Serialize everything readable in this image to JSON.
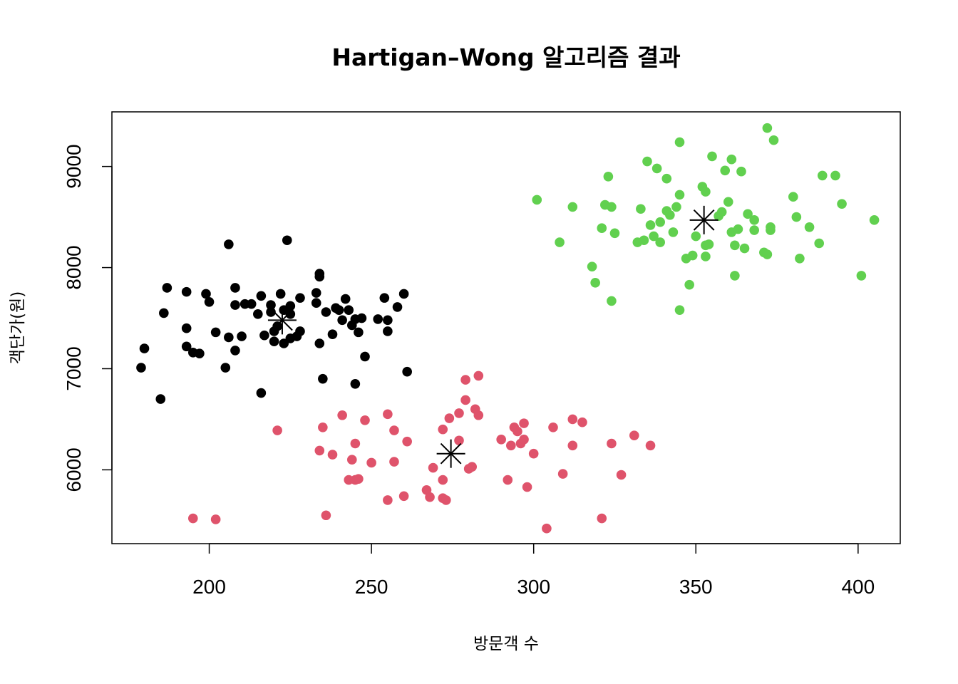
{
  "chart_data": {
    "type": "scatter",
    "title": "Hartigan–Wong 알고리즘 결과",
    "xlabel": "방문객 수",
    "ylabel": "객단가(원)",
    "xlim": [
      170,
      413
    ],
    "ylim": [
      5270,
      9540
    ],
    "xticks": [
      200,
      250,
      300,
      350,
      400
    ],
    "yticks": [
      6000,
      7000,
      8000,
      9000
    ],
    "grid": false,
    "legend": "none",
    "series": [
      {
        "color": "#000000",
        "points": [
          [
            179,
            7010
          ],
          [
            180,
            7200
          ],
          [
            185,
            6700
          ],
          [
            186,
            7550
          ],
          [
            187,
            7800
          ],
          [
            193,
            7400
          ],
          [
            193,
            7220
          ],
          [
            193,
            7760
          ],
          [
            195,
            7160
          ],
          [
            197,
            7150
          ],
          [
            199,
            7740
          ],
          [
            200,
            7660
          ],
          [
            202,
            7360
          ],
          [
            205,
            7010
          ],
          [
            206,
            8230
          ],
          [
            206,
            7310
          ],
          [
            208,
            7180
          ],
          [
            208,
            7800
          ],
          [
            208,
            7630
          ],
          [
            210,
            7320
          ],
          [
            211,
            7640
          ],
          [
            213,
            7640
          ],
          [
            215,
            7540
          ],
          [
            216,
            6760
          ],
          [
            216,
            7720
          ],
          [
            217,
            7330
          ],
          [
            219,
            7560
          ],
          [
            219,
            7630
          ],
          [
            220,
            7270
          ],
          [
            220,
            7370
          ],
          [
            221,
            7420
          ],
          [
            222,
            7740
          ],
          [
            223,
            7250
          ],
          [
            223,
            7580
          ],
          [
            224,
            8270
          ],
          [
            225,
            7620
          ],
          [
            225,
            7540
          ],
          [
            225,
            7300
          ],
          [
            227,
            7320
          ],
          [
            228,
            7700
          ],
          [
            228,
            7370
          ],
          [
            233,
            7650
          ],
          [
            233,
            7750
          ],
          [
            234,
            7940
          ],
          [
            234,
            7250
          ],
          [
            234,
            7910
          ],
          [
            235,
            6900
          ],
          [
            236,
            7560
          ],
          [
            238,
            7340
          ],
          [
            239,
            7600
          ],
          [
            240,
            7580
          ],
          [
            241,
            7480
          ],
          [
            242,
            7690
          ],
          [
            243,
            7580
          ],
          [
            244,
            7430
          ],
          [
            245,
            6850
          ],
          [
            245,
            7490
          ],
          [
            246,
            7360
          ],
          [
            247,
            7500
          ],
          [
            248,
            7120
          ],
          [
            252,
            7490
          ],
          [
            254,
            7700
          ],
          [
            255,
            7480
          ],
          [
            255,
            7370
          ],
          [
            258,
            7610
          ],
          [
            260,
            7740
          ],
          [
            261,
            6970
          ]
        ]
      },
      {
        "color": "#df536b",
        "points": [
          [
            195,
            5520
          ],
          [
            202,
            5510
          ],
          [
            221,
            6390
          ],
          [
            234,
            6190
          ],
          [
            235,
            6420
          ],
          [
            236,
            5550
          ],
          [
            238,
            6150
          ],
          [
            241,
            6540
          ],
          [
            243,
            5900
          ],
          [
            244,
            6100
          ],
          [
            245,
            6260
          ],
          [
            245,
            5900
          ],
          [
            246,
            5910
          ],
          [
            248,
            6490
          ],
          [
            250,
            6070
          ],
          [
            255,
            6550
          ],
          [
            255,
            5700
          ],
          [
            257,
            6080
          ],
          [
            257,
            6390
          ],
          [
            260,
            5740
          ],
          [
            261,
            6280
          ],
          [
            267,
            5800
          ],
          [
            268,
            5730
          ],
          [
            269,
            6020
          ],
          [
            272,
            5900
          ],
          [
            272,
            6400
          ],
          [
            272,
            5720
          ],
          [
            273,
            5700
          ],
          [
            274,
            6510
          ],
          [
            277,
            6560
          ],
          [
            277,
            6290
          ],
          [
            279,
            6690
          ],
          [
            279,
            6890
          ],
          [
            280,
            6010
          ],
          [
            281,
            6030
          ],
          [
            282,
            6600
          ],
          [
            283,
            6930
          ],
          [
            283,
            6540
          ],
          [
            290,
            6300
          ],
          [
            292,
            5900
          ],
          [
            293,
            6240
          ],
          [
            294,
            6420
          ],
          [
            295,
            6380
          ],
          [
            296,
            6260
          ],
          [
            297,
            6300
          ],
          [
            297,
            6460
          ],
          [
            298,
            5830
          ],
          [
            300,
            6160
          ],
          [
            304,
            5420
          ],
          [
            306,
            6420
          ],
          [
            309,
            5960
          ],
          [
            312,
            6500
          ],
          [
            312,
            6240
          ],
          [
            315,
            6470
          ],
          [
            321,
            5520
          ],
          [
            324,
            6260
          ],
          [
            327,
            5950
          ],
          [
            331,
            6340
          ],
          [
            336,
            6240
          ]
        ]
      },
      {
        "color": "#61d04f",
        "points": [
          [
            301,
            8670
          ],
          [
            308,
            8250
          ],
          [
            312,
            8600
          ],
          [
            318,
            8010
          ],
          [
            319,
            7850
          ],
          [
            321,
            8390
          ],
          [
            322,
            8620
          ],
          [
            323,
            8900
          ],
          [
            324,
            7670
          ],
          [
            324,
            8600
          ],
          [
            325,
            8340
          ],
          [
            332,
            8250
          ],
          [
            333,
            8580
          ],
          [
            334,
            8270
          ],
          [
            335,
            9050
          ],
          [
            336,
            8420
          ],
          [
            337,
            8310
          ],
          [
            338,
            8980
          ],
          [
            339,
            8250
          ],
          [
            339,
            8450
          ],
          [
            341,
            8880
          ],
          [
            341,
            8560
          ],
          [
            342,
            8520
          ],
          [
            343,
            8350
          ],
          [
            344,
            8600
          ],
          [
            345,
            9240
          ],
          [
            345,
            8720
          ],
          [
            345,
            7580
          ],
          [
            347,
            8090
          ],
          [
            348,
            7830
          ],
          [
            349,
            8120
          ],
          [
            350,
            8310
          ],
          [
            352,
            8800
          ],
          [
            353,
            8220
          ],
          [
            353,
            8110
          ],
          [
            354,
            8230
          ],
          [
            353,
            8750
          ],
          [
            355,
            9100
          ],
          [
            357,
            8510
          ],
          [
            358,
            8550
          ],
          [
            359,
            8960
          ],
          [
            360,
            8650
          ],
          [
            361,
            9070
          ],
          [
            361,
            8350
          ],
          [
            362,
            8220
          ],
          [
            362,
            7920
          ],
          [
            363,
            8380
          ],
          [
            364,
            8950
          ],
          [
            365,
            8190
          ],
          [
            366,
            8530
          ],
          [
            368,
            8470
          ],
          [
            368,
            8370
          ],
          [
            371,
            8150
          ],
          [
            372,
            8130
          ],
          [
            372,
            9380
          ],
          [
            373,
            8370
          ],
          [
            373,
            8400
          ],
          [
            374,
            9260
          ],
          [
            380,
            8700
          ],
          [
            381,
            8500
          ],
          [
            382,
            8090
          ],
          [
            385,
            8400
          ],
          [
            388,
            8240
          ],
          [
            389,
            8910
          ],
          [
            393,
            8910
          ],
          [
            395,
            8630
          ],
          [
            401,
            7920
          ],
          [
            405,
            8470
          ]
        ]
      }
    ],
    "centers": [
      {
        "x": 222.5,
        "y": 7480
      },
      {
        "x": 274.5,
        "y": 6160
      },
      {
        "x": 352.5,
        "y": 8470
      }
    ]
  }
}
